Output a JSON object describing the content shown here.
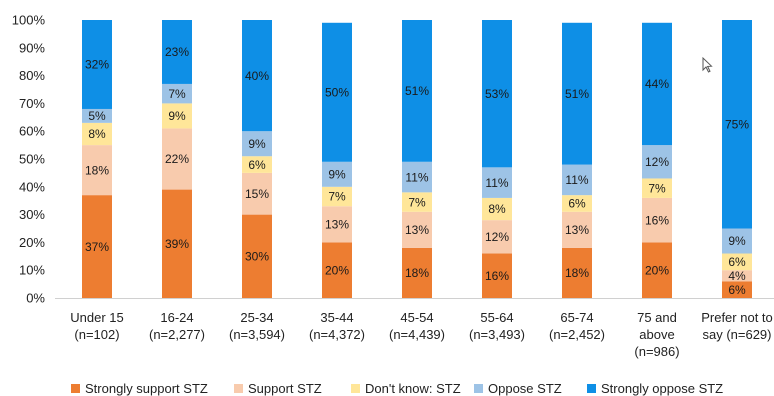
{
  "chart_data": {
    "type": "bar",
    "stacked": true,
    "categories": [
      [
        "Under 15",
        "(n=102)"
      ],
      [
        "16-24",
        "(n=2,277)"
      ],
      [
        "25-34",
        "(n=3,594)"
      ],
      [
        "35-44",
        "(n=4,372)"
      ],
      [
        "45-54",
        "(n=4,439)"
      ],
      [
        "55-64",
        "(n=3,493)"
      ],
      [
        "65-74",
        "(n=2,452)"
      ],
      [
        "75 and",
        "above",
        "(n=986)"
      ],
      [
        "Prefer not to",
        "say (n=629)"
      ]
    ],
    "series": [
      {
        "name": "Strongly support STZ",
        "color": "#ED7D31",
        "values": [
          37,
          39,
          30,
          20,
          18,
          16,
          18,
          20,
          6
        ]
      },
      {
        "name": "Support STZ",
        "color": "#F8CBAD",
        "values": [
          18,
          22,
          15,
          13,
          13,
          12,
          13,
          16,
          4
        ]
      },
      {
        "name": "Don't know: STZ",
        "color": "#FFE699",
        "values": [
          8,
          9,
          6,
          7,
          7,
          8,
          6,
          7,
          6
        ]
      },
      {
        "name": "Oppose STZ",
        "color": "#9DC3E6",
        "values": [
          5,
          7,
          9,
          9,
          11,
          11,
          11,
          12,
          9
        ]
      },
      {
        "name": "Strongly oppose STZ",
        "color": "#0E8FE6",
        "values": [
          32,
          23,
          40,
          50,
          51,
          53,
          51,
          44,
          75
        ]
      }
    ],
    "ylim": [
      0,
      100
    ],
    "yticks": [
      "0%",
      "10%",
      "20%",
      "30%",
      "40%",
      "50%",
      "60%",
      "70%",
      "80%",
      "90%",
      "100%"
    ],
    "xlabel": "",
    "ylabel": "",
    "legend_position": "bottom",
    "grid": false
  }
}
